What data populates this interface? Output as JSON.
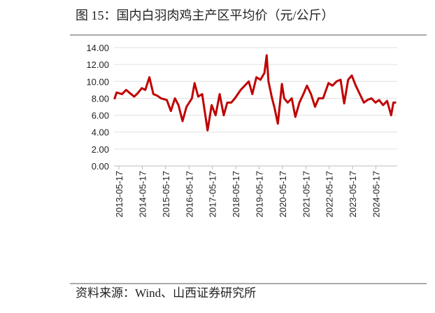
{
  "chart_data": {
    "type": "line",
    "title": "图 15：国内白羽肉鸡主产区平均价（元/公斤）",
    "source": "资料来源：Wind、山西证券研究所",
    "x": [
      "2013-03-08",
      "2013-04-12",
      "2013-07-05",
      "2013-09-06",
      "2013-11-08",
      "2014-01-10",
      "2014-03-07",
      "2014-05-09",
      "2014-07-04",
      "2014-09-05",
      "2014-11-07",
      "2015-01-09",
      "2015-03-06",
      "2015-06-05",
      "2015-08-07",
      "2015-10-09",
      "2015-12-04",
      "2016-02-05",
      "2016-04-08",
      "2016-07-01",
      "2016-08-12",
      "2016-10-07",
      "2016-12-09",
      "2017-03-03",
      "2017-05-05",
      "2017-07-07",
      "2017-09-08",
      "2017-11-10",
      "2018-01-05",
      "2018-03-09",
      "2018-05-04",
      "2018-08-03",
      "2018-10-05",
      "2018-12-07",
      "2019-02-01",
      "2019-04-05",
      "2019-06-07",
      "2019-08-09",
      "2019-09-13",
      "2019-10-11",
      "2019-12-06",
      "2020-01-10",
      "2020-03-06",
      "2020-05-08",
      "2020-06-12",
      "2020-08-07",
      "2020-10-09",
      "2020-12-04",
      "2021-02-05",
      "2021-04-09",
      "2021-06-04",
      "2021-08-06",
      "2021-10-08",
      "2021-12-03",
      "2022-02-11",
      "2022-05-06",
      "2022-07-08",
      "2022-09-09",
      "2022-11-11",
      "2023-01-06",
      "2023-03-10",
      "2023-05-05",
      "2023-07-07",
      "2023-09-08",
      "2023-11-10",
      "2024-01-05",
      "2024-03-08",
      "2024-05-10",
      "2024-07-05",
      "2024-09-06",
      "2024-11-08",
      "2025-01-10",
      "2025-02-14",
      "2025-03-28"
    ],
    "series": [
      {
        "name": "平均价",
        "color": "#c00000",
        "values": [
          7.9,
          8.7,
          8.5,
          9.0,
          8.6,
          8.2,
          8.6,
          9.2,
          9.0,
          10.5,
          8.5,
          8.3,
          8.0,
          7.8,
          6.5,
          8.0,
          7.2,
          5.3,
          7.0,
          8.0,
          9.8,
          8.2,
          8.5,
          4.2,
          7.2,
          6.0,
          8.5,
          6.0,
          7.5,
          7.5,
          8.0,
          9.0,
          9.5,
          10.0,
          8.5,
          10.5,
          10.2,
          11.0,
          13.1,
          10.0,
          8.0,
          7.0,
          5.0,
          9.7,
          8.0,
          7.5,
          8.0,
          5.8,
          7.5,
          8.5,
          9.5,
          8.5,
          7.0,
          8.0,
          8.0,
          9.8,
          9.5,
          10.0,
          10.2,
          7.4,
          10.2,
          10.7,
          9.5,
          8.5,
          7.5,
          7.8,
          8.0,
          7.5,
          7.8,
          7.2,
          7.7,
          6.0,
          7.5,
          7.5
        ]
      }
    ],
    "xlim": [
      "2013-03-01",
      "2025-04-15"
    ],
    "xticks": [
      "2013-05-17",
      "2014-05-17",
      "2015-05-17",
      "2016-05-17",
      "2017-05-17",
      "2018-05-17",
      "2019-05-17",
      "2020-05-17",
      "2021-05-17",
      "2022-05-17",
      "2023-05-17",
      "2024-05-17"
    ],
    "ylim": [
      0,
      14
    ],
    "yticks": [
      {
        "value": 0,
        "label": "0.00"
      },
      {
        "value": 2,
        "label": "2.00"
      },
      {
        "value": 4,
        "label": "4.00"
      },
      {
        "value": 6,
        "label": "6.00"
      },
      {
        "value": 8,
        "label": "8.00"
      },
      {
        "value": 10,
        "label": "10.00"
      },
      {
        "value": 12,
        "label": "12.00"
      },
      {
        "value": 14,
        "label": "14.00"
      }
    ],
    "grid": true
  }
}
